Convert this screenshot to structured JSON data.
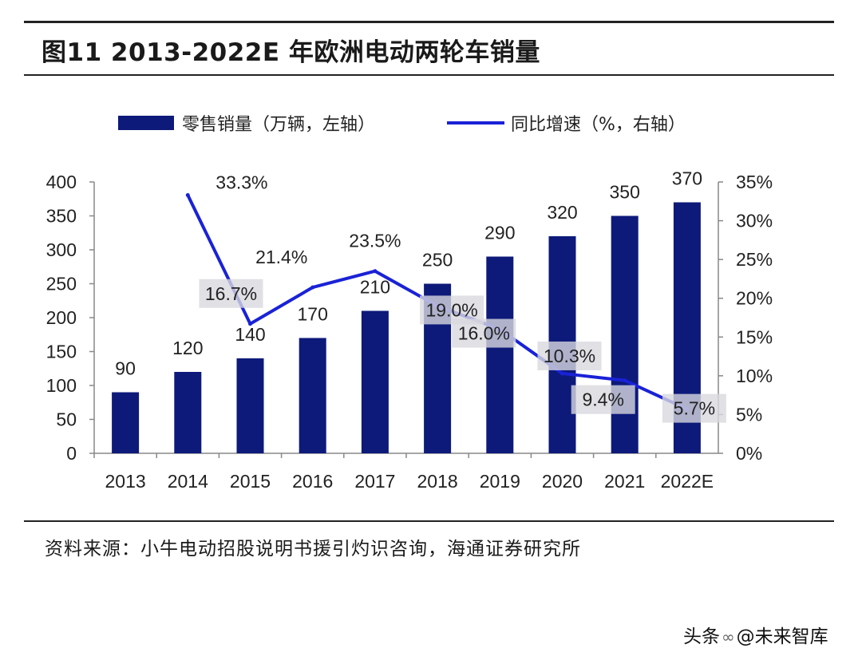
{
  "header": {
    "title": "图11 2013-2022E 年欧洲电动两轮车销量"
  },
  "footer": {
    "source": "资料来源：小牛电动招股说明书援引灼识咨询，海通证券研究所"
  },
  "watermark": {
    "prefix": "头条",
    "at": "@",
    "name": "未来智库"
  },
  "chart_data": {
    "type": "bar",
    "categories": [
      "2013",
      "2014",
      "2015",
      "2016",
      "2017",
      "2018",
      "2019",
      "2020",
      "2021",
      "2022E"
    ],
    "series": [
      {
        "name": "零售销量（万辆，左轴）",
        "type": "bar",
        "axis": "left",
        "color": "#0d1a7a",
        "values": [
          90,
          120,
          140,
          170,
          210,
          250,
          290,
          320,
          350,
          370
        ],
        "labels": [
          "90",
          "120",
          "140",
          "170",
          "210",
          "250",
          "290",
          "320",
          "350",
          "370"
        ]
      },
      {
        "name": "同比增速（%，右轴）",
        "type": "line",
        "axis": "right",
        "color": "#1a22d6",
        "values": [
          null,
          33.3,
          16.7,
          21.4,
          23.5,
          19.0,
          16.0,
          10.3,
          9.4,
          5.7
        ],
        "labels": [
          "",
          "33.3%",
          "16.7%",
          "21.4%",
          "23.5%",
          "19.0%",
          "16.0%",
          "10.3%",
          "9.4%",
          "5.7%"
        ]
      }
    ],
    "y_left": {
      "ylim": [
        0,
        400
      ],
      "ticks": [
        "0",
        "50",
        "100",
        "150",
        "200",
        "250",
        "300",
        "350",
        "400"
      ]
    },
    "y_right": {
      "ylim": [
        0,
        35
      ],
      "ticks": [
        "0%",
        "5%",
        "10%",
        "15%",
        "20%",
        "25%",
        "30%",
        "35%"
      ]
    },
    "legend": "top",
    "grid": false
  }
}
